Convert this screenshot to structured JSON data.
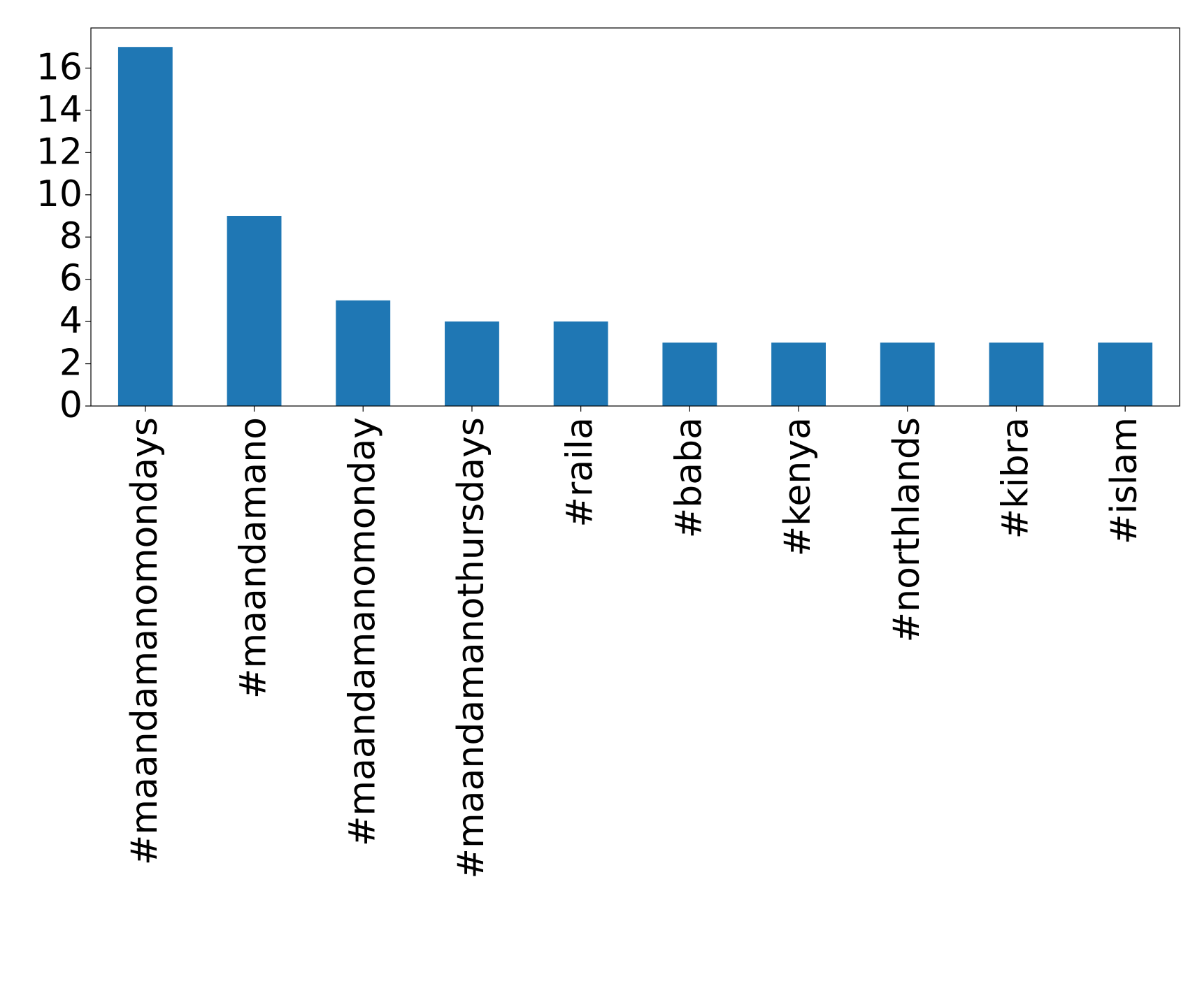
{
  "chart_data": {
    "type": "bar",
    "categories": [
      "#maandamanomondays",
      "#maandamano",
      "#maandamanomonday",
      "#maandamanothursdays",
      "#raila",
      "#baba",
      "#kenya",
      "#northlands",
      "#kibra",
      "#islam"
    ],
    "values": [
      17,
      9,
      5,
      4,
      4,
      3,
      3,
      3,
      3,
      3
    ],
    "color": "#1f77b4",
    "ylim": [
      0,
      17.9
    ],
    "yticks": [
      0,
      2,
      4,
      6,
      8,
      10,
      12,
      14,
      16
    ],
    "grid": false
  }
}
